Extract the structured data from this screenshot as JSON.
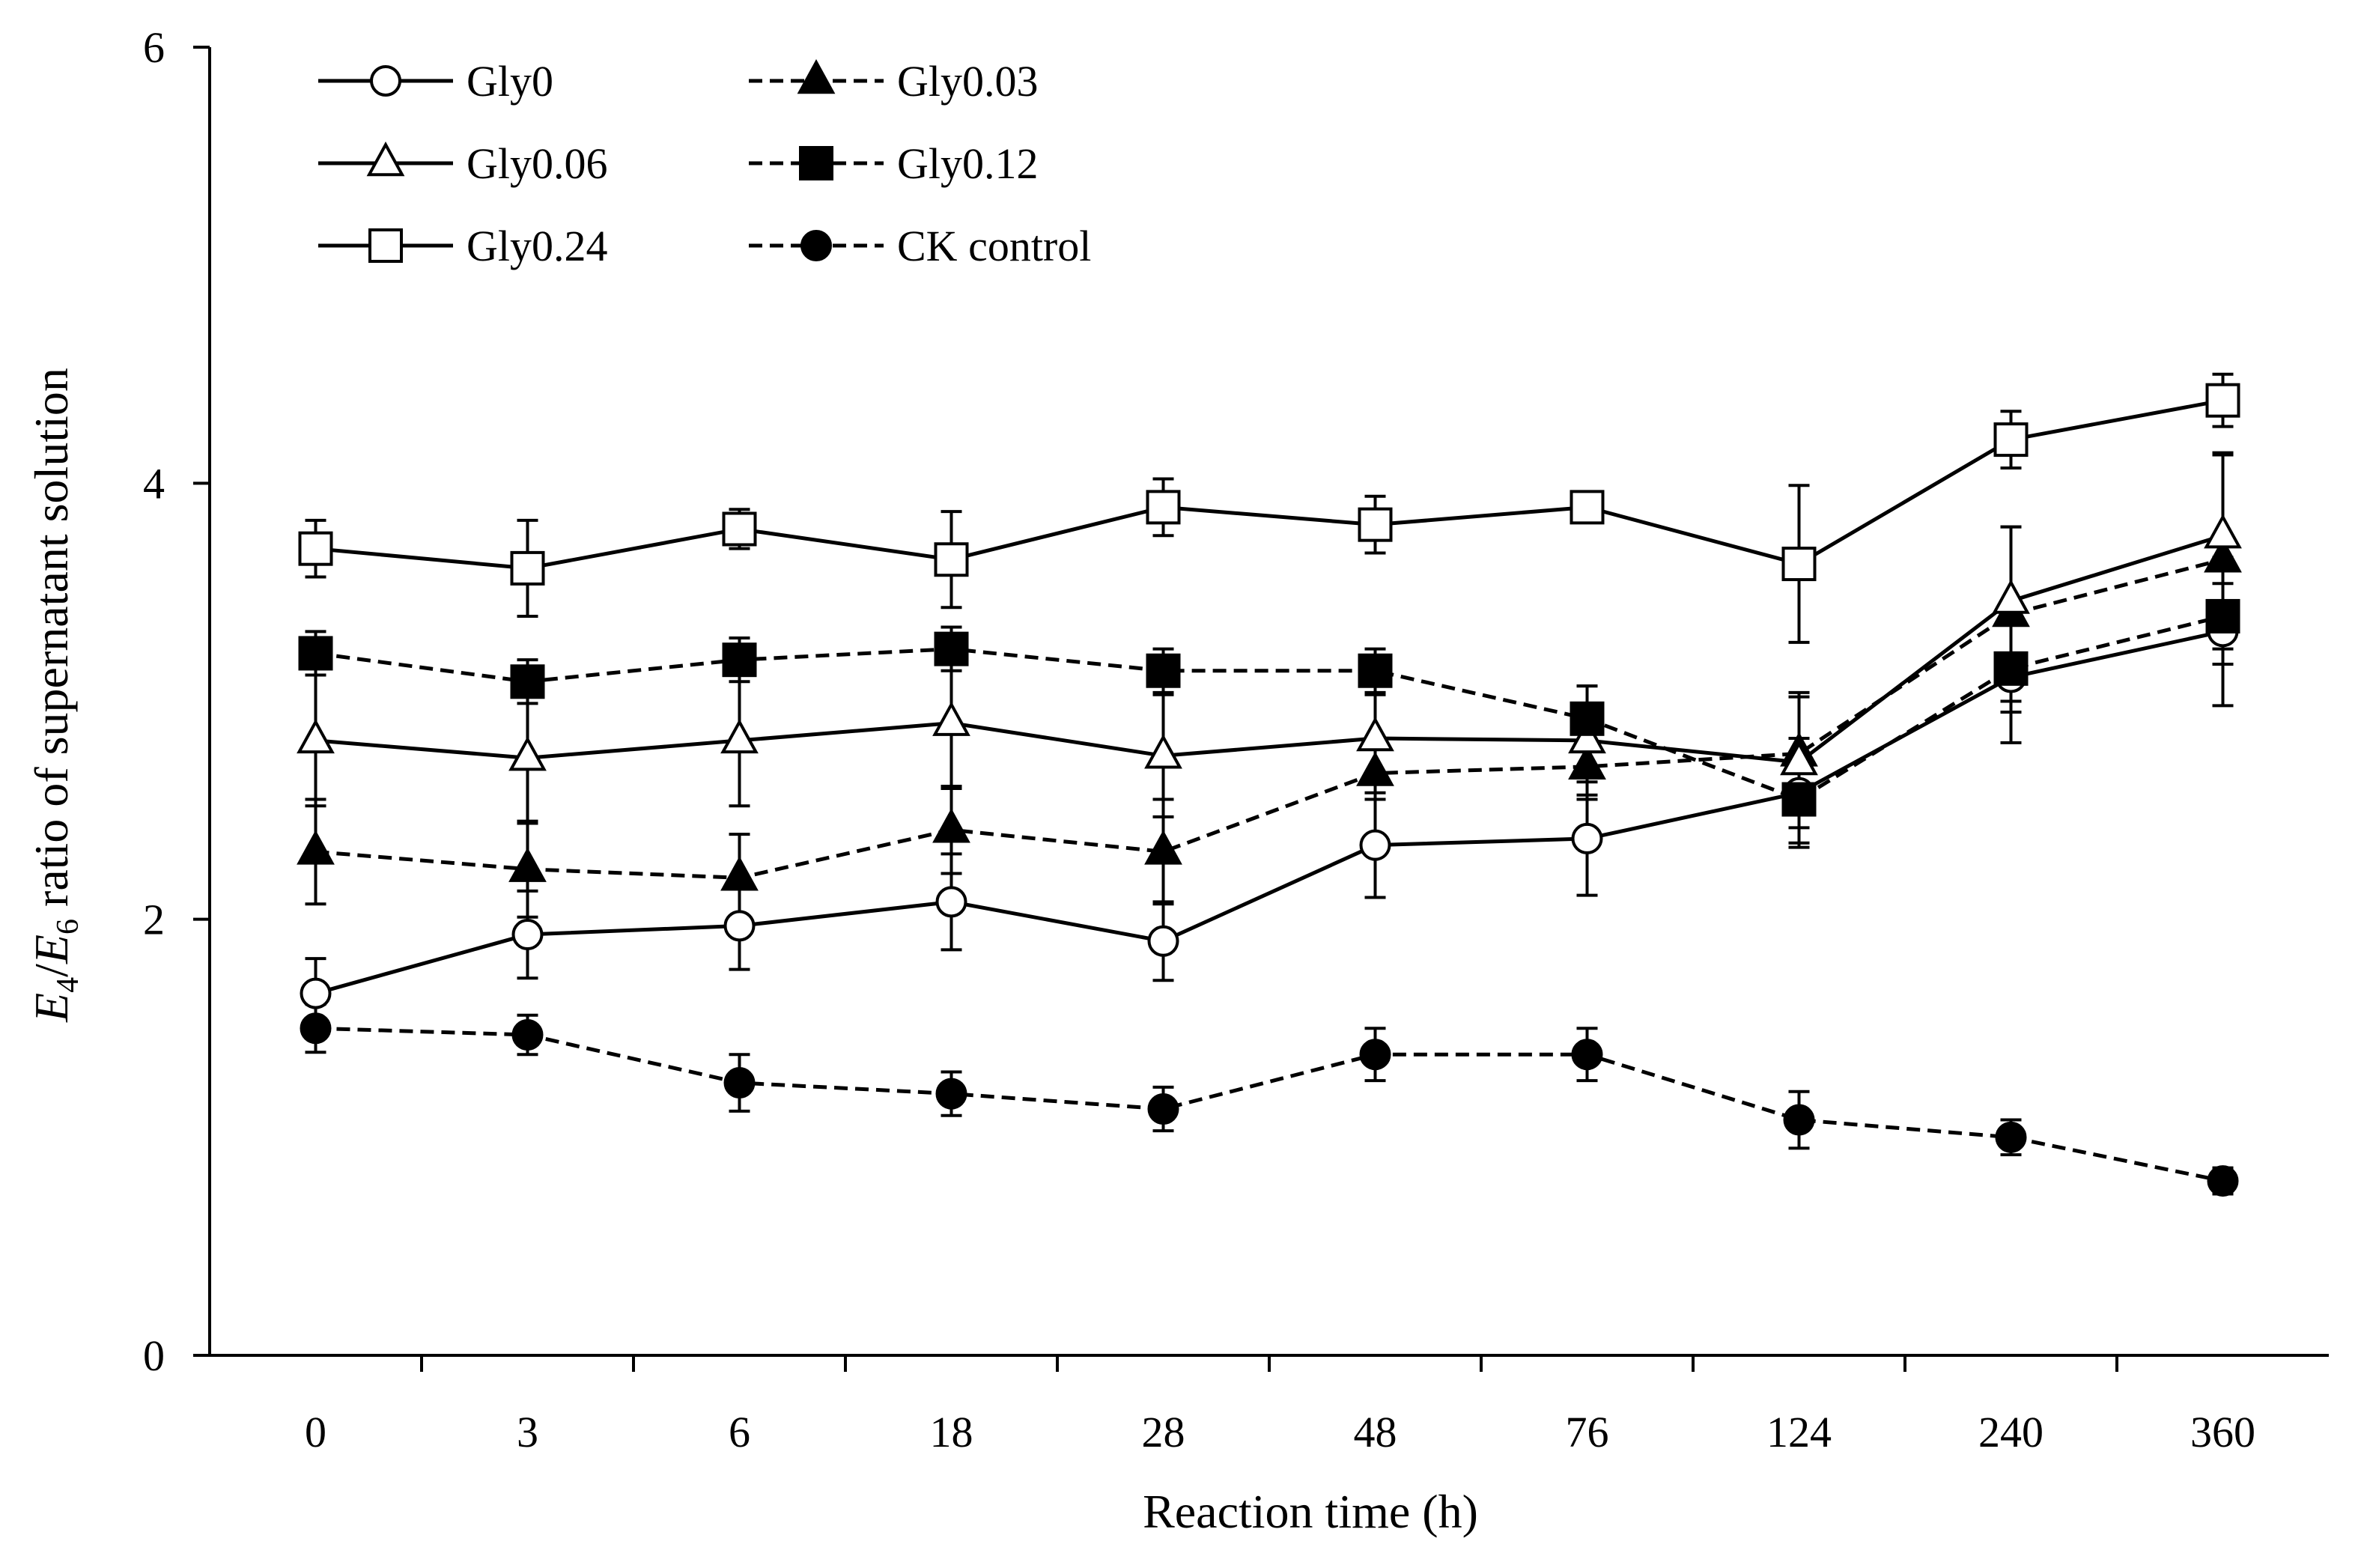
{
  "chart_data": {
    "type": "line",
    "title": "",
    "xlabel": "Reaction time (h)",
    "ylabel": {
      "e4_letter": "E",
      "e4_sub": "4",
      "slash": "/",
      "e6_letter": "E",
      "e6_sub": "6",
      "rest": " ratio of supernatant solution"
    },
    "categories": [
      "0",
      "3",
      "6",
      "18",
      "28",
      "48",
      "76",
      "124",
      "240",
      "360"
    ],
    "ylim": [
      0,
      6
    ],
    "yticks": [
      "0",
      "2",
      "4",
      "6"
    ],
    "legend_position": "top-left",
    "series": [
      {
        "name": "Gly0",
        "marker": "circle-open",
        "dash": "solid",
        "values": [
          1.66,
          1.93,
          1.97,
          2.08,
          1.9,
          2.34,
          2.37,
          2.58,
          3.11,
          3.32
        ],
        "errors": [
          0.16,
          0.2,
          0.2,
          0.22,
          0.18,
          0.24,
          0.26,
          0.25,
          0.3,
          0.34
        ]
      },
      {
        "name": "Gly0.03",
        "marker": "triangle-filled",
        "dash": "dashed",
        "values": [
          2.31,
          2.23,
          2.19,
          2.41,
          2.31,
          2.67,
          2.7,
          2.76,
          3.4,
          3.65
        ],
        "errors": [
          0.24,
          0.22,
          0.2,
          0.2,
          0.24,
          0.12,
          0.15,
          0.28,
          0.4,
          0.48
        ]
      },
      {
        "name": "Gly0.06",
        "marker": "triangle-open",
        "dash": "solid",
        "values": [
          2.82,
          2.74,
          2.82,
          2.9,
          2.75,
          2.83,
          2.82,
          2.72,
          3.46,
          3.76
        ],
        "errors": [
          0.3,
          0.3,
          0.3,
          0.3,
          0.28,
          0.2,
          0.25,
          0.3,
          0.34,
          0.38
        ]
      },
      {
        "name": "Gly0.12",
        "marker": "square-filled",
        "dash": "dashed",
        "values": [
          3.22,
          3.09,
          3.19,
          3.24,
          3.14,
          3.14,
          2.92,
          2.55,
          3.15,
          3.39
        ],
        "errors": [
          0.1,
          0.1,
          0.1,
          0.1,
          0.1,
          0.1,
          0.15,
          0.2,
          0.2,
          0.15
        ]
      },
      {
        "name": "Gly0.24",
        "marker": "square-open",
        "dash": "solid",
        "values": [
          3.7,
          3.61,
          3.79,
          3.65,
          3.89,
          3.81,
          3.89,
          3.63,
          4.2,
          4.38
        ],
        "errors": [
          0.13,
          0.22,
          0.09,
          0.22,
          0.13,
          0.13,
          0.06,
          0.36,
          0.13,
          0.12
        ]
      },
      {
        "name": "CK control",
        "marker": "circle-filled",
        "dash": "dashed",
        "values": [
          1.5,
          1.47,
          1.25,
          1.2,
          1.13,
          1.38,
          1.38,
          1.08,
          1.0,
          0.8
        ],
        "errors": [
          0.11,
          0.09,
          0.13,
          0.1,
          0.1,
          0.12,
          0.12,
          0.13,
          0.08,
          0.06
        ]
      }
    ]
  },
  "colors": {
    "ink": "#000000",
    "background": "#ffffff"
  }
}
